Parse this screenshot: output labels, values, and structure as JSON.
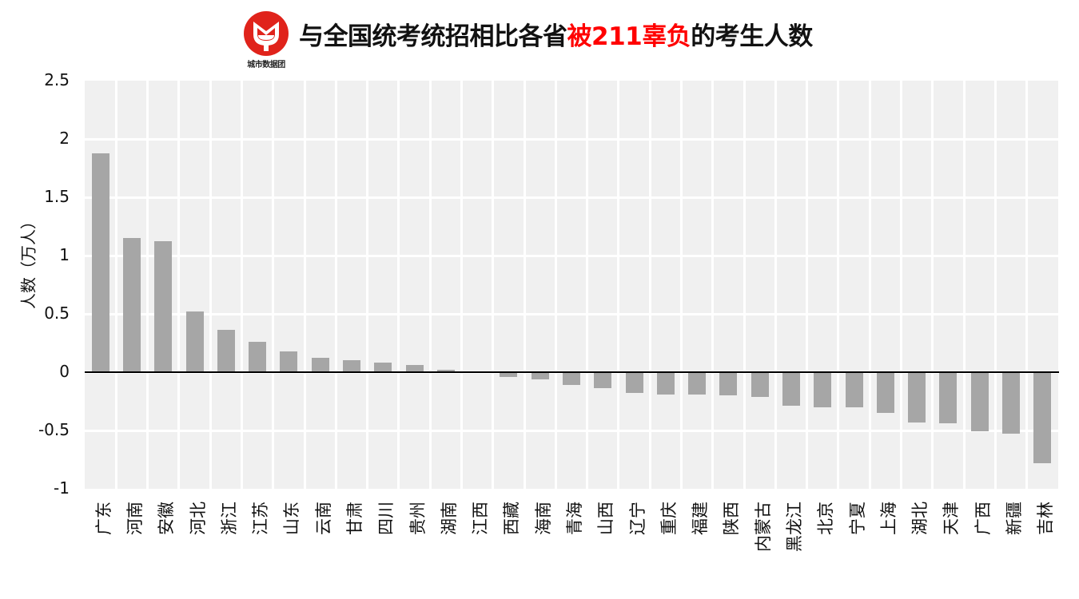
{
  "header": {
    "logo_text": "城市数据团",
    "title_parts": [
      "与全国统考统招相比各省",
      "被211辜负",
      "的考生人数"
    ],
    "title_highlight_color": "#ff0000",
    "logo_color": "#e0231b"
  },
  "chart_data": {
    "type": "bar",
    "title": "与全国统考统招相比各省被211辜负的考生人数",
    "xlabel": "",
    "ylabel": "人数（万人）",
    "ylim": [
      -1,
      2.5
    ],
    "yticks": [
      "2.5",
      "2",
      "1.5",
      "1",
      "0.5",
      "0",
      "-0.5",
      "-1"
    ],
    "grid": true,
    "bar_color": "#a6a6a6",
    "background": "#f0f0f0",
    "categories": [
      "广东",
      "河南",
      "安徽",
      "河北",
      "浙江",
      "江苏",
      "山东",
      "云南",
      "甘肃",
      "四川",
      "贵州",
      "湖南",
      "江西",
      "西藏",
      "海南",
      "青海",
      "山西",
      "辽宁",
      "重庆",
      "福建",
      "陕西",
      "内蒙古",
      "黑龙江",
      "北京",
      "宁夏",
      "上海",
      "湖北",
      "天津",
      "广西",
      "新疆",
      "吉林"
    ],
    "values": [
      1.88,
      1.15,
      1.12,
      0.52,
      0.36,
      0.26,
      0.18,
      0.12,
      0.1,
      0.08,
      0.06,
      0.02,
      0.01,
      -0.04,
      -0.06,
      -0.11,
      -0.14,
      -0.18,
      -0.19,
      -0.19,
      -0.2,
      -0.21,
      -0.29,
      -0.3,
      -0.3,
      -0.35,
      -0.43,
      -0.44,
      -0.51,
      -0.53,
      -0.78
    ]
  }
}
